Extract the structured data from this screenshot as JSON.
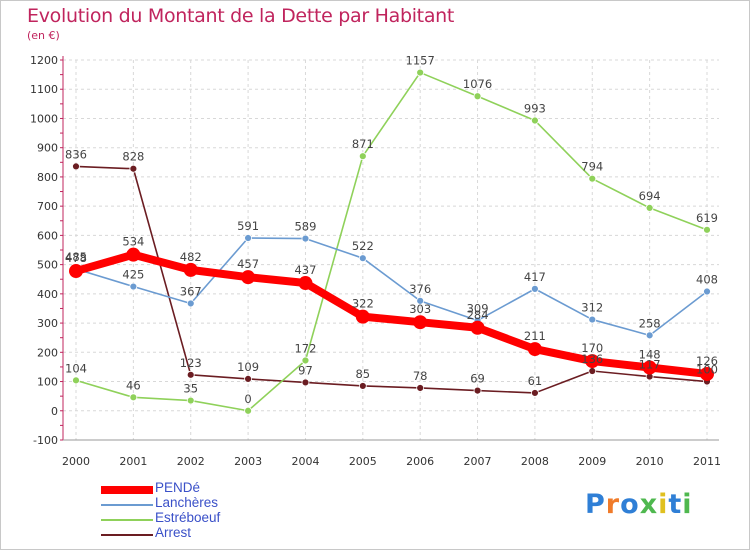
{
  "header": {
    "title": "Evolution du Montant de la Dette par Habitant",
    "subtitle": "(en €)"
  },
  "colors": {
    "title": "#c0245d",
    "legend_text": "#3a50c8",
    "PENDé": "#ff0000",
    "Lanchères": "#6b9bd1",
    "Estréboeuf": "#8fd15a",
    "Arrest": "#6b1d22"
  },
  "logo": {
    "text": "Proxiti"
  },
  "chart_data": {
    "type": "line",
    "title": "Evolution du Montant de la Dette par Habitant",
    "ylabel": "(en €)",
    "xlabel": "",
    "ylim": [
      -100,
      1200
    ],
    "yticks": [
      "-100",
      "0",
      "100",
      "200",
      "300",
      "400",
      "500",
      "600",
      "700",
      "800",
      "900",
      "1000",
      "1100",
      "1200"
    ],
    "x": [
      "2000",
      "2001",
      "2002",
      "2003",
      "2004",
      "2005",
      "2006",
      "2007",
      "2008",
      "2009",
      "2010",
      "2011"
    ],
    "grid": true,
    "legend_position": "bottom-left",
    "series": [
      {
        "name": "PENDé",
        "values": [
          478,
          534,
          482,
          457,
          437,
          322,
          303,
          284,
          211,
          170,
          148,
          126
        ]
      },
      {
        "name": "Lanchères",
        "values": [
          485,
          425,
          367,
          591,
          589,
          522,
          376,
          309,
          417,
          312,
          258,
          408
        ]
      },
      {
        "name": "Estréboeuf",
        "values": [
          104,
          46,
          35,
          0,
          172,
          871,
          1157,
          1076,
          993,
          794,
          694,
          619
        ]
      },
      {
        "name": "Arrest",
        "values": [
          836,
          828,
          123,
          109,
          97,
          85,
          78,
          69,
          61,
          136,
          117,
          100
        ]
      }
    ]
  }
}
